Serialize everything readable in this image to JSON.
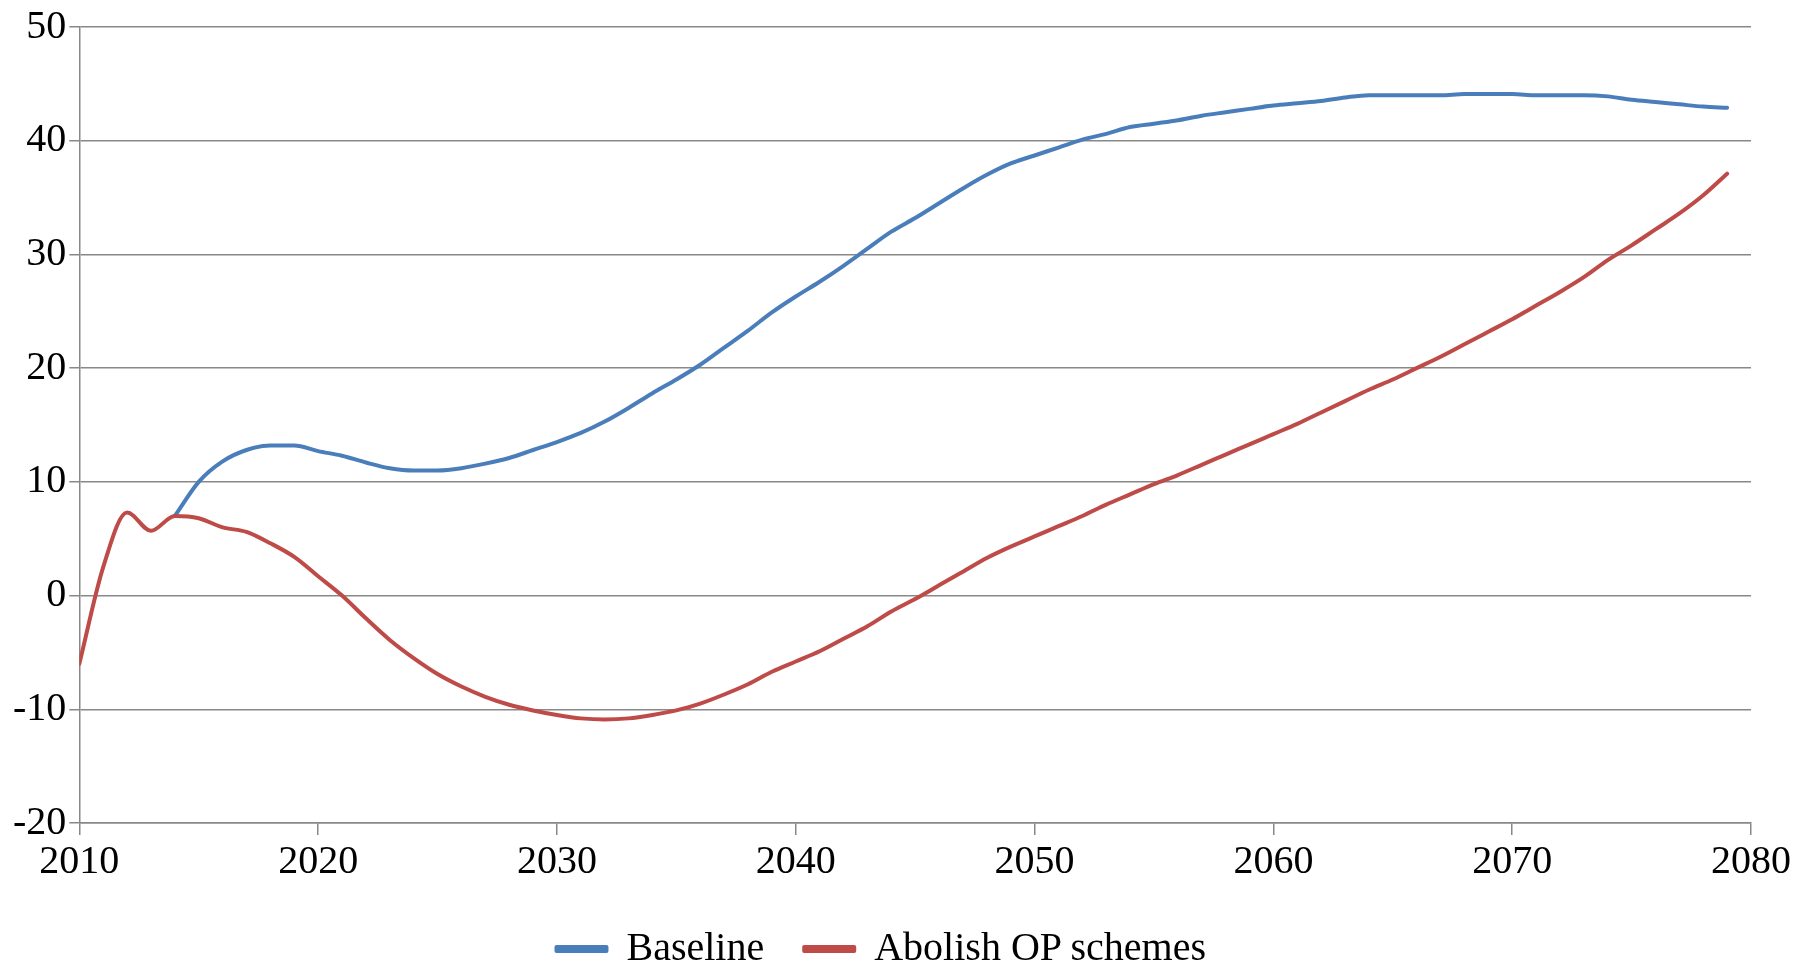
{
  "chart_data": {
    "type": "line",
    "x": [
      2010,
      2011,
      2012,
      2013,
      2014,
      2015,
      2016,
      2017,
      2018,
      2019,
      2020,
      2021,
      2022,
      2023,
      2024,
      2025,
      2026,
      2027,
      2028,
      2029,
      2030,
      2031,
      2032,
      2033,
      2034,
      2035,
      2036,
      2037,
      2038,
      2039,
      2040,
      2041,
      2042,
      2043,
      2044,
      2045,
      2046,
      2047,
      2048,
      2049,
      2050,
      2051,
      2052,
      2053,
      2054,
      2055,
      2056,
      2057,
      2058,
      2059,
      2060,
      2061,
      2062,
      2063,
      2064,
      2065,
      2066,
      2067,
      2068,
      2069,
      2070,
      2071,
      2072,
      2073,
      2074,
      2075,
      2076,
      2077,
      2078,
      2079
    ],
    "series": [
      {
        "name": "Baseline",
        "color": "#4a7ebb",
        "values": [
          null,
          null,
          null,
          null,
          7,
          10,
          11.8,
          12.8,
          13.2,
          13.2,
          12.7,
          12.3,
          11.7,
          11.2,
          11,
          11,
          11.2,
          11.6,
          12.1,
          12.8,
          13.5,
          14.3,
          15.3,
          16.5,
          17.8,
          19,
          20.3,
          21.8,
          23.3,
          24.9,
          26.3,
          27.6,
          29,
          30.5,
          32,
          33.2,
          34.5,
          35.8,
          37,
          38,
          38.7,
          39.4,
          40.1,
          40.6,
          41.2,
          41.5,
          41.8,
          42.2,
          42.5,
          42.8,
          43.1,
          43.3,
          43.5,
          43.8,
          44,
          44,
          44,
          44,
          44.1,
          44.1,
          44.1,
          44,
          44,
          44,
          43.9,
          43.6,
          43.4,
          43.2,
          43,
          42.9
        ]
      },
      {
        "name": "Abolish OP schemes",
        "color": "#be4b48",
        "values": [
          -6,
          2.5,
          7.3,
          5.7,
          7,
          6.8,
          6,
          5.6,
          4.6,
          3.4,
          1.7,
          0,
          -2,
          -3.9,
          -5.5,
          -6.9,
          -8,
          -8.9,
          -9.6,
          -10.1,
          -10.5,
          -10.8,
          -10.9,
          -10.8,
          -10.5,
          -10.1,
          -9.5,
          -8.7,
          -7.8,
          -6.7,
          -5.8,
          -4.9,
          -3.8,
          -2.7,
          -1.4,
          -0.3,
          0.9,
          2.1,
          3.3,
          4.3,
          5.2,
          6.1,
          7,
          8,
          8.9,
          9.8,
          10.6,
          11.5,
          12.4,
          13.3,
          14.2,
          15.1,
          16.1,
          17.1,
          18.1,
          19,
          20,
          21,
          22.1,
          23.2,
          24.3,
          25.5,
          26.7,
          28,
          29.5,
          30.8,
          32.2,
          33.6,
          35.2,
          37.1
        ]
      }
    ],
    "xlim": [
      2010,
      2080
    ],
    "xticks": [
      2010,
      2020,
      2030,
      2040,
      2050,
      2060,
      2070,
      2080
    ],
    "ylim": [
      -20,
      50
    ],
    "yticks": [
      -20,
      -10,
      0,
      10,
      20,
      30,
      40,
      50
    ],
    "grid": "y",
    "legend": "bottom",
    "marker": "none",
    "line_style": "solid"
  }
}
